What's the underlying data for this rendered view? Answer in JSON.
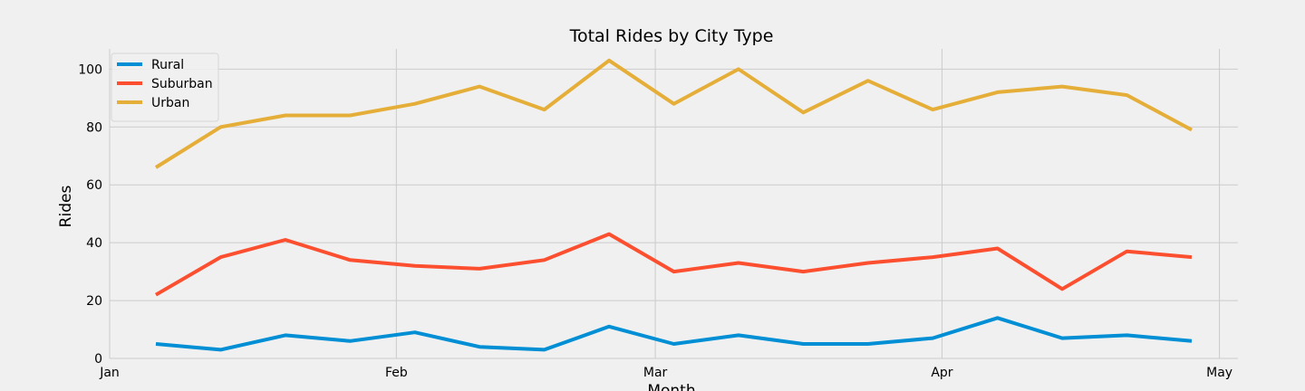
{
  "chart_data": {
    "type": "line",
    "title": "Total Rides by City Type",
    "xlabel": "Month",
    "ylabel": "Rides",
    "x": [
      "2019-01-06",
      "2019-01-13",
      "2019-01-20",
      "2019-01-27",
      "2019-02-03",
      "2019-02-10",
      "2019-02-17",
      "2019-02-24",
      "2019-03-03",
      "2019-03-10",
      "2019-03-17",
      "2019-03-24",
      "2019-03-31",
      "2019-04-07",
      "2019-04-14",
      "2019-04-21",
      "2019-04-28"
    ],
    "xlim": [
      "2019-01-01",
      "2019-05-03"
    ],
    "xticks": [
      {
        "label": "Jan",
        "date": "2019-01-01"
      },
      {
        "label": "Feb",
        "date": "2019-02-01"
      },
      {
        "label": "Mar",
        "date": "2019-03-01"
      },
      {
        "label": "Apr",
        "date": "2019-04-01"
      },
      {
        "label": "May",
        "date": "2019-05-01"
      }
    ],
    "ylim": [
      0,
      107
    ],
    "yticks": [
      0,
      20,
      40,
      60,
      80,
      100
    ],
    "grid": true,
    "legend_position": "upper-left",
    "series": [
      {
        "name": "Rural",
        "color": "#008fd5",
        "values": [
          5,
          3,
          8,
          6,
          9,
          4,
          3,
          11,
          5,
          8,
          5,
          5,
          7,
          14,
          7,
          8,
          6
        ]
      },
      {
        "name": "Suburban",
        "color": "#fc4f30",
        "values": [
          22,
          35,
          41,
          34,
          32,
          31,
          34,
          43,
          30,
          33,
          30,
          33,
          35,
          38,
          24,
          37,
          35
        ]
      },
      {
        "name": "Urban",
        "color": "#e5ae38",
        "values": [
          66,
          80,
          84,
          84,
          88,
          94,
          86,
          103,
          88,
          100,
          85,
          96,
          86,
          92,
          94,
          91,
          79
        ]
      }
    ]
  }
}
